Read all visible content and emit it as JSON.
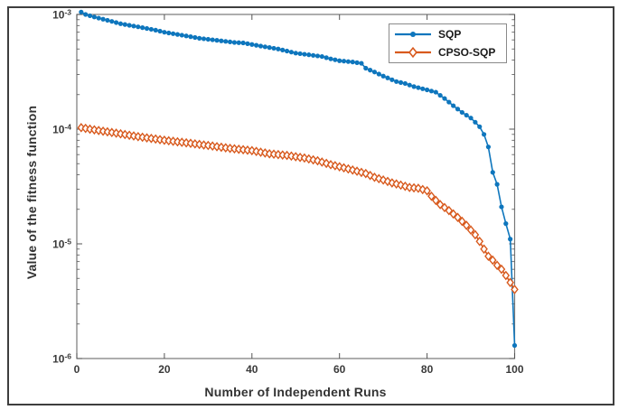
{
  "chart_data": {
    "type": "line",
    "title": "",
    "xlabel": "Number of Independent Runs",
    "ylabel": "Value of the fitness function",
    "x_axis": {
      "min": 0,
      "max": 100,
      "ticks": [
        0,
        20,
        40,
        60,
        80,
        100
      ]
    },
    "y_axis": {
      "scale": "log",
      "min": 1e-06,
      "max": 0.001,
      "tick_exponents": [
        -3,
        -4,
        -5,
        -6
      ]
    },
    "grid": false,
    "legend": {
      "position": "top-right-inside",
      "border_color": "#8a8a8a"
    },
    "series": [
      {
        "name": "SQP",
        "color": "#0E76BD",
        "marker": "filled-circle",
        "x": [
          1,
          2,
          4,
          8,
          10,
          14,
          18,
          20,
          24,
          28,
          32,
          36,
          38,
          42,
          46,
          50,
          53,
          56,
          58,
          60,
          63,
          65,
          66,
          68,
          70,
          73,
          75,
          77,
          80,
          82,
          84,
          86,
          88,
          90,
          91,
          92,
          93,
          94,
          95,
          96,
          97,
          98,
          99,
          100
        ],
        "y": [
          0.00105,
          0.001,
          0.00095,
          0.00087,
          0.00083,
          0.00078,
          0.00073,
          0.0007,
          0.00066,
          0.00062,
          0.000595,
          0.00057,
          0.000565,
          0.00053,
          0.0005,
          0.00046,
          0.000445,
          0.00043,
          0.00041,
          0.000395,
          0.000385,
          0.000375,
          0.00034,
          0.000315,
          0.00029,
          0.00026,
          0.00025,
          0.000235,
          0.00022,
          0.00021,
          0.000185,
          0.00016,
          0.00014,
          0.000125,
          0.000115,
          0.000105,
          9e-05,
          7e-05,
          4.2e-05,
          3.3e-05,
          2.1e-05,
          1.5e-05,
          1.1e-05,
          1.3e-06
        ]
      },
      {
        "name": "CPSO-SQP",
        "color": "#D85A1E",
        "marker": "open-diamond",
        "x": [
          1,
          3,
          6,
          10,
          14,
          18,
          20,
          25,
          30,
          35,
          40,
          44,
          48,
          52,
          55,
          58,
          60,
          63,
          66,
          68,
          70,
          72,
          74,
          76,
          78,
          80,
          81,
          83,
          85,
          87,
          89,
          91,
          92,
          93,
          94,
          95,
          96,
          97,
          98,
          99,
          100
        ],
        "y": [
          0.000103,
          0.0001,
          9.6e-05,
          9.1e-05,
          8.6e-05,
          8.2e-05,
          8e-05,
          7.6e-05,
          7.2e-05,
          6.8e-05,
          6.5e-05,
          6.1e-05,
          5.9e-05,
          5.6e-05,
          5.3e-05,
          4.9e-05,
          4.7e-05,
          4.4e-05,
          4.1e-05,
          3.8e-05,
          3.6e-05,
          3.4e-05,
          3.25e-05,
          3.1e-05,
          3.05e-05,
          2.9e-05,
          2.6e-05,
          2.2e-05,
          1.95e-05,
          1.7e-05,
          1.45e-05,
          1.2e-05,
          1.05e-05,
          9e-06,
          7.8e-06,
          7.2e-06,
          6.5e-06,
          6e-06,
          5.3e-06,
          4.6e-06,
          4e-06
        ]
      }
    ],
    "axis_colors": {
      "spine": "#777777",
      "tick": "#555555",
      "label": "#333333"
    }
  }
}
